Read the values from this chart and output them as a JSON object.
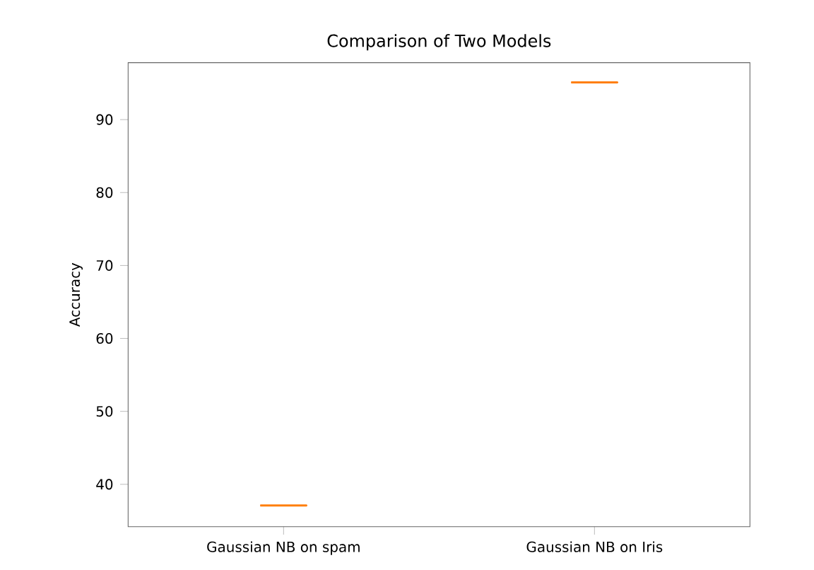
{
  "chart_data": {
    "type": "box",
    "title": "Comparison of Two Models",
    "ylabel": "Accuracy",
    "categories": [
      "Gaussian NB on spam",
      "Gaussian NB on Iris"
    ],
    "boxes": [
      {
        "low": 37.1,
        "q1": 37.1,
        "median": 37.1,
        "q3": 37.1,
        "high": 37.1
      },
      {
        "low": 95.1,
        "q1": 95.1,
        "median": 95.1,
        "q3": 95.1,
        "high": 95.1
      }
    ],
    "color": "#ff7f0e",
    "ylim": [
      34.2,
      97.8
    ],
    "yticks": [
      40,
      50,
      60,
      70,
      80,
      90
    ]
  }
}
